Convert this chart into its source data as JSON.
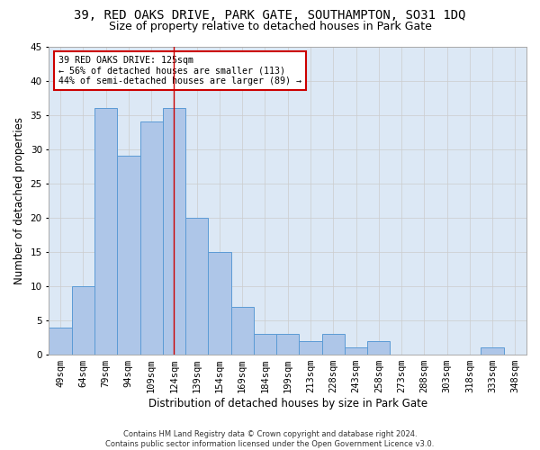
{
  "title1": "39, RED OAKS DRIVE, PARK GATE, SOUTHAMPTON, SO31 1DQ",
  "title2": "Size of property relative to detached houses in Park Gate",
  "xlabel": "Distribution of detached houses by size in Park Gate",
  "ylabel": "Number of detached properties",
  "categories": [
    "49sqm",
    "64sqm",
    "79sqm",
    "94sqm",
    "109sqm",
    "124sqm",
    "139sqm",
    "154sqm",
    "169sqm",
    "184sqm",
    "199sqm",
    "213sqm",
    "228sqm",
    "243sqm",
    "258sqm",
    "273sqm",
    "288sqm",
    "303sqm",
    "318sqm",
    "333sqm",
    "348sqm"
  ],
  "values": [
    4,
    10,
    36,
    29,
    34,
    36,
    20,
    15,
    7,
    3,
    3,
    2,
    3,
    1,
    2,
    0,
    0,
    0,
    0,
    1,
    0
  ],
  "bar_color": "#aec6e8",
  "bar_edge_color": "#5b9bd5",
  "highlight_index": 5,
  "highlight_line_color": "#cc0000",
  "annotation_text": "39 RED OAKS DRIVE: 125sqm\n← 56% of detached houses are smaller (113)\n44% of semi-detached houses are larger (89) →",
  "annotation_box_color": "#ffffff",
  "annotation_box_edge_color": "#cc0000",
  "ylim": [
    0,
    45
  ],
  "yticks": [
    0,
    5,
    10,
    15,
    20,
    25,
    30,
    35,
    40,
    45
  ],
  "footer1": "Contains HM Land Registry data © Crown copyright and database right 2024.",
  "footer2": "Contains public sector information licensed under the Open Government Licence v3.0.",
  "bg_color": "#ffffff",
  "grid_color": "#cccccc",
  "ax_bg_color": "#dce8f5",
  "title1_fontsize": 10,
  "title2_fontsize": 9,
  "xlabel_fontsize": 8.5,
  "ylabel_fontsize": 8.5,
  "tick_fontsize": 7.5,
  "annotation_fontsize": 7.2,
  "footer_fontsize": 6.0
}
